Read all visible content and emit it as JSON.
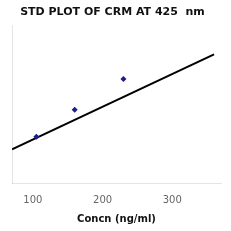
{
  "chart_data": {
    "type": "scatter",
    "title": "STD PLOT OF CRM AT 425  nm",
    "xlabel": "Concn (ng/ml)",
    "series": [
      {
        "type": "scatter",
        "marker": "diamond",
        "color": "#1c1c8a",
        "x": [
          105,
          160,
          230
        ],
        "values": [
          0.09,
          0.16,
          0.24
        ]
      },
      {
        "type": "line",
        "line_style": "solid",
        "color": "#000000",
        "x": [
          70,
          360
        ],
        "values": [
          0.0575,
          0.304
        ]
      }
    ],
    "xlim": [
      70,
      370
    ],
    "xticks": [
      100,
      200,
      300
    ],
    "ylim": [
      -0.03,
      0.38
    ],
    "yticks": [],
    "grid": false,
    "tick_labels": "x"
  }
}
